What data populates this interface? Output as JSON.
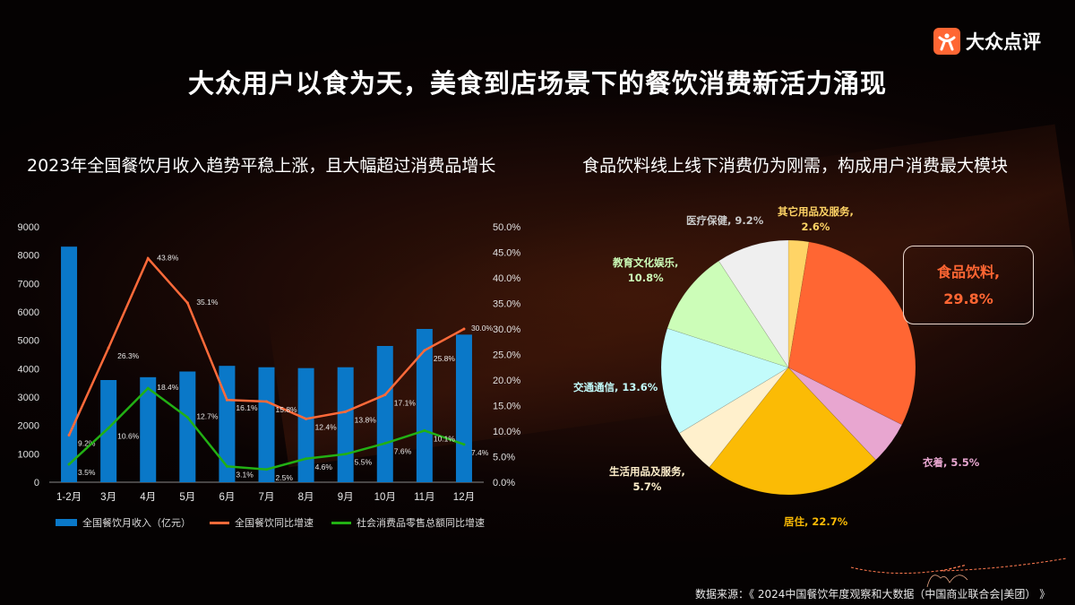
{
  "header": {
    "title": "大众用户以食为天，美食到店场景下的餐饮消费新活力涌现",
    "logo_text": "大众点评",
    "logo_icon": "dianping-person-icon",
    "brand_color": "#ff6633"
  },
  "left_subtitle": "2023年全国餐饮月收入趋势平稳上涨，且大幅超过消费品增长",
  "right_subtitle": "食品饮料线上线下消费仍为刚需，构成用户消费最大模块",
  "footer": {
    "source": "数据来源：《 2024中国餐饮年度观察和大数据（中国商业联合会|美团）  》"
  },
  "chart_data": [
    {
      "type": "bar+line",
      "categories": [
        "1-2月",
        "3月",
        "4月",
        "5月",
        "6月",
        "7月",
        "8月",
        "9月",
        "10月",
        "11月",
        "12月"
      ],
      "left_axis": {
        "ylim": [
          0,
          9000
        ],
        "ticks": [
          "0",
          "1000",
          "2000",
          "3000",
          "4000",
          "5000",
          "6000",
          "7000",
          "8000",
          "9000"
        ]
      },
      "right_axis": {
        "ylim": [
          0,
          50
        ],
        "ticks": [
          "0.0%",
          "5.0%",
          "10.0%",
          "15.0%",
          "20.0%",
          "25.0%",
          "30.0%",
          "35.0%",
          "40.0%",
          "45.0%",
          "50.0%"
        ]
      },
      "grid": false,
      "legend_position": "bottom",
      "series": [
        {
          "name": "全国餐饮月收入（亿元）",
          "kind": "bar",
          "axis": "left",
          "color": "#0a78c8",
          "values": [
            8300,
            3600,
            3700,
            3900,
            4100,
            4050,
            4020,
            4050,
            4800,
            5400,
            5200
          ]
        },
        {
          "name": "全国餐饮同比增速",
          "kind": "line",
          "axis": "right",
          "color": "#ff6a3a",
          "values": [
            9.2,
            26.3,
            43.8,
            35.1,
            16.1,
            15.8,
            12.4,
            13.8,
            17.1,
            25.8,
            30.0
          ],
          "labels": [
            "9.2%",
            "26.3%",
            "43.8%",
            "35.1%",
            "16.1%",
            "15.8%",
            "12.4%",
            "13.8%",
            "17.1%",
            "25.8%",
            "30.0%"
          ]
        },
        {
          "name": "社会消费品零售总额同比增速",
          "kind": "line",
          "axis": "right",
          "color": "#22b014",
          "values": [
            3.5,
            10.6,
            18.4,
            12.7,
            3.1,
            2.5,
            4.6,
            5.5,
            7.6,
            10.1,
            7.4
          ],
          "labels": [
            "3.5%",
            "10.6%",
            "18.4%",
            "12.7%",
            "3.1%",
            "2.5%",
            "4.6%",
            "5.5%",
            "7.6%",
            "10.1%",
            "7.4%"
          ]
        }
      ]
    },
    {
      "type": "pie",
      "start": "top",
      "direction": "clockwise",
      "slices": [
        {
          "label": "其它用品及服务,",
          "value": 2.6,
          "value_label": "2.6%",
          "color": "#ffd466"
        },
        {
          "label": "食品饮料,",
          "value": 29.8,
          "value_label": "29.8%",
          "color": "#ff6633"
        },
        {
          "label": "衣着,",
          "value": 5.5,
          "value_label": "5.5%",
          "color": "#e8a6d0"
        },
        {
          "label": "居住,",
          "value": 22.7,
          "value_label": "22.7%",
          "color": "#fbbb05"
        },
        {
          "label": "生活用品及服务,",
          "value": 5.7,
          "value_label": "5.7%",
          "color": "#fff0cc"
        },
        {
          "label": "交通通信,",
          "value": 13.6,
          "value_label": "13.6%",
          "color": "#c2fbfb"
        },
        {
          "label": "教育文化娱乐,",
          "value": 10.8,
          "value_label": "10.8%",
          "color": "#ccfdb8"
        },
        {
          "label": "医疗保健,",
          "value": 9.2,
          "value_label": "9.2%",
          "color": "#efefef"
        }
      ]
    }
  ]
}
